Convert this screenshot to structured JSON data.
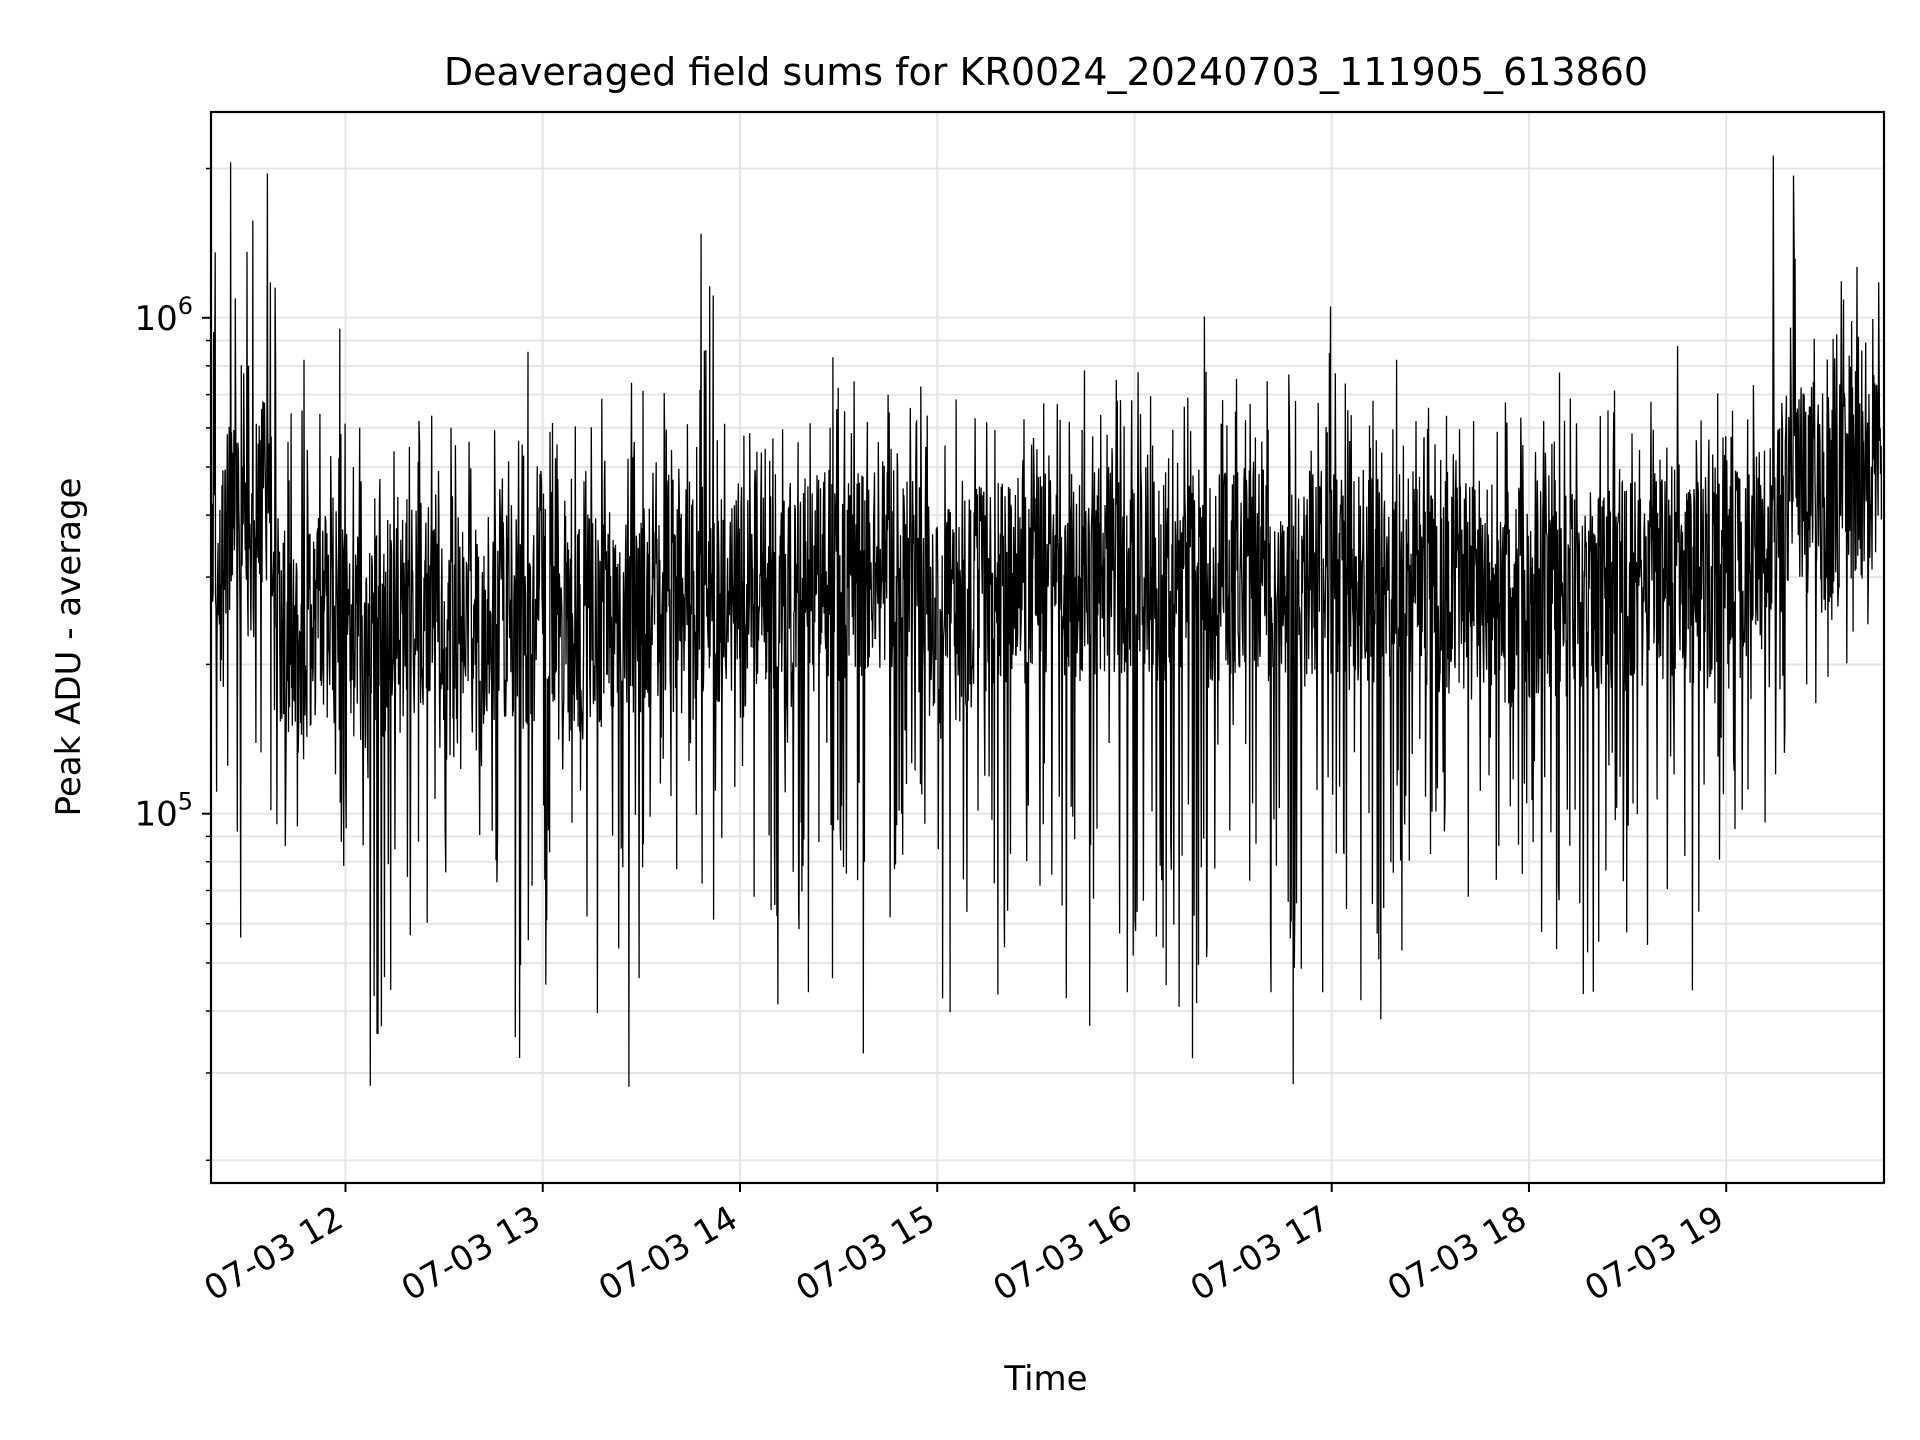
{
  "chart_data": {
    "type": "line",
    "title": "Deaveraged field sums for KR0024_20240703_111905_613860",
    "xlabel": "Time",
    "ylabel": "Peak ADU - average",
    "yscale": "log",
    "xlim": [
      "2024-07-03 11:19:05",
      "2024-07-03 19:48:00"
    ],
    "ylim": [
      18000,
      2600000
    ],
    "grid": true,
    "line_color": "#000000",
    "grid_color": "#e5e5e5",
    "x_ticks": [
      {
        "at": "2024-07-03 12:00",
        "label": "07-03 12"
      },
      {
        "at": "2024-07-03 13:00",
        "label": "07-03 13"
      },
      {
        "at": "2024-07-03 14:00",
        "label": "07-03 14"
      },
      {
        "at": "2024-07-03 15:00",
        "label": "07-03 15"
      },
      {
        "at": "2024-07-03 16:00",
        "label": "07-03 16"
      },
      {
        "at": "2024-07-03 17:00",
        "label": "07-03 17"
      },
      {
        "at": "2024-07-03 18:00",
        "label": "07-03 18"
      },
      {
        "at": "2024-07-03 19:00",
        "label": "07-03 19"
      }
    ],
    "y_ticks": [
      {
        "value": 100000,
        "base": "10",
        "exp": "5"
      },
      {
        "value": 1000000,
        "base": "10",
        "exp": "6"
      }
    ],
    "y_minor_ticks": [
      20000,
      30000,
      40000,
      50000,
      60000,
      70000,
      80000,
      90000,
      200000,
      300000,
      400000,
      500000,
      600000,
      700000,
      800000,
      900000,
      2000000
    ],
    "series": [
      {
        "name": "",
        "x": [
          "2024-07-03 11:20",
          "2024-07-03 11:25",
          "2024-07-03 11:30",
          "2024-07-03 11:35",
          "2024-07-03 11:40",
          "2024-07-03 11:45",
          "2024-07-03 11:50",
          "2024-07-03 11:55",
          "2024-07-03 12:00",
          "2024-07-03 12:05",
          "2024-07-03 12:10",
          "2024-07-03 12:15",
          "2024-07-03 12:20",
          "2024-07-03 12:25",
          "2024-07-03 12:30",
          "2024-07-03 12:35",
          "2024-07-03 12:40",
          "2024-07-03 12:45",
          "2024-07-03 12:50",
          "2024-07-03 12:55",
          "2024-07-03 13:00",
          "2024-07-03 13:05",
          "2024-07-03 13:10",
          "2024-07-03 13:15",
          "2024-07-03 13:20",
          "2024-07-03 13:25",
          "2024-07-03 13:30",
          "2024-07-03 13:35",
          "2024-07-03 13:40",
          "2024-07-03 13:45",
          "2024-07-03 13:50",
          "2024-07-03 13:55",
          "2024-07-03 14:00",
          "2024-07-03 14:05",
          "2024-07-03 14:10",
          "2024-07-03 14:15",
          "2024-07-03 14:20",
          "2024-07-03 14:25",
          "2024-07-03 14:30",
          "2024-07-03 14:35",
          "2024-07-03 14:40",
          "2024-07-03 14:45",
          "2024-07-03 14:50",
          "2024-07-03 14:55",
          "2024-07-03 15:00",
          "2024-07-03 15:05",
          "2024-07-03 15:10",
          "2024-07-03 15:15",
          "2024-07-03 15:20",
          "2024-07-03 15:25",
          "2024-07-03 15:30",
          "2024-07-03 15:35",
          "2024-07-03 15:40",
          "2024-07-03 15:45",
          "2024-07-03 15:50",
          "2024-07-03 15:55",
          "2024-07-03 16:00",
          "2024-07-03 16:05",
          "2024-07-03 16:10",
          "2024-07-03 16:15",
          "2024-07-03 16:20",
          "2024-07-03 16:25",
          "2024-07-03 16:30",
          "2024-07-03 16:35",
          "2024-07-03 16:40",
          "2024-07-03 16:45",
          "2024-07-03 16:50",
          "2024-07-03 16:55",
          "2024-07-03 17:00",
          "2024-07-03 17:05",
          "2024-07-03 17:10",
          "2024-07-03 17:15",
          "2024-07-03 17:20",
          "2024-07-03 17:25",
          "2024-07-03 17:30",
          "2024-07-03 17:35",
          "2024-07-03 17:40",
          "2024-07-03 17:45",
          "2024-07-03 17:50",
          "2024-07-03 17:55",
          "2024-07-03 18:00",
          "2024-07-03 18:05",
          "2024-07-03 18:10",
          "2024-07-03 18:15",
          "2024-07-03 18:20",
          "2024-07-03 18:25",
          "2024-07-03 18:30",
          "2024-07-03 18:35",
          "2024-07-03 18:40",
          "2024-07-03 18:45",
          "2024-07-03 18:50",
          "2024-07-03 18:55",
          "2024-07-03 19:00",
          "2024-07-03 19:05",
          "2024-07-03 19:10",
          "2024-07-03 19:15",
          "2024-07-03 19:20",
          "2024-07-03 19:25",
          "2024-07-03 19:30",
          "2024-07-03 19:35",
          "2024-07-03 19:40",
          "2024-07-03 19:45"
        ],
        "min": [
          95000,
          88000,
          55000,
          100000,
          85000,
          90000,
          150000,
          120000,
          75000,
          85000,
          28000,
          42000,
          55000,
          60000,
          75000,
          120000,
          90000,
          70000,
          35000,
          32000,
          45000,
          120000,
          95000,
          38000,
          90000,
          27000,
          45000,
          95000,
          75000,
          95000,
          60000,
          85000,
          110000,
          65000,
          40000,
          75000,
          42000,
          85000,
          45000,
          70000,
          32000,
          60000,
          82000,
          95000,
          42000,
          38000,
          62000,
          70000,
          42000,
          80000,
          70000,
          75000,
          42000,
          36000,
          65000,
          55000,
          42000,
          55000,
          43000,
          40000,
          32000,
          75000,
          90000,
          70000,
          42000,
          55000,
          28000,
          43000,
          80000,
          62000,
          40000,
          38000,
          52000,
          80000,
          80000,
          90000,
          65000,
          110000,
          72000,
          85000,
          75000,
          55000,
          52000,
          43000,
          42000,
          75000,
          55000,
          52000,
          70000,
          80000,
          42000,
          110000,
          80000,
          90000,
          95000,
          120000,
          130000,
          160000,
          180000,
          200000,
          230000,
          240000
        ],
        "typ": [
          290000,
          380000,
          360000,
          420000,
          240000,
          210000,
          230000,
          250000,
          240000,
          220000,
          230000,
          240000,
          250000,
          260000,
          250000,
          255000,
          240000,
          250000,
          245000,
          230000,
          270000,
          260000,
          240000,
          250000,
          255000,
          270000,
          260000,
          250000,
          260000,
          270000,
          280000,
          270000,
          275000,
          280000,
          270000,
          265000,
          290000,
          300000,
          295000,
          300000,
          305000,
          310000,
          290000,
          285000,
          230000,
          250000,
          270000,
          280000,
          290000,
          290000,
          300000,
          295000,
          290000,
          300000,
          310000,
          305000,
          300000,
          295000,
          305000,
          310000,
          300000,
          295000,
          300000,
          310000,
          305000,
          300000,
          295000,
          310000,
          300000,
          290000,
          305000,
          300000,
          295000,
          300000,
          290000,
          285000,
          290000,
          280000,
          285000,
          270000,
          275000,
          280000,
          270000,
          285000,
          290000,
          280000,
          290000,
          285000,
          300000,
          310000,
          300000,
          295000,
          290000,
          300000,
          310000,
          420000,
          440000,
          450000,
          430000,
          470000,
          480000,
          500000
        ],
        "max": [
          1400000,
          2100000,
          1600000,
          2050000,
          1200000,
          850000,
          640000,
          550000,
          1000000,
          620000,
          480000,
          560000,
          630000,
          650000,
          600000,
          560000,
          570000,
          600000,
          530000,
          860000,
          600000,
          620000,
          630000,
          610000,
          700000,
          750000,
          730000,
          740000,
          610000,
          630000,
          1550000,
          630000,
          600000,
          600000,
          590000,
          600000,
          620000,
          620000,
          850000,
          760000,
          640000,
          700000,
          660000,
          740000,
          580000,
          700000,
          650000,
          620000,
          600000,
          630000,
          700000,
          680000,
          640000,
          810000,
          650000,
          760000,
          800000,
          730000,
          600000,
          720000,
          1040000,
          710000,
          770000,
          690000,
          770000,
          800000,
          700000,
          690000,
          1100000,
          740000,
          620000,
          700000,
          850000,
          650000,
          690000,
          640000,
          600000,
          640000,
          610000,
          700000,
          640000,
          640000,
          800000,
          720000,
          640000,
          720000,
          610000,
          700000,
          620000,
          880000,
          640000,
          710000,
          680000,
          640000,
          750000,
          2150000,
          2000000,
          920000,
          850000,
          1220000,
          1280000,
          1180000
        ]
      }
    ]
  }
}
